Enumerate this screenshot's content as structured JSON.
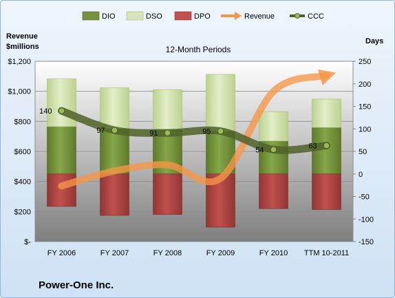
{
  "chart_data": {
    "type": "bar",
    "title": "12-Month Periods",
    "company": "Power-One Inc.",
    "left_axis_title": [
      "Revenue",
      "$millions"
    ],
    "right_axis_title": "Days",
    "categories": [
      "FY 2006",
      "FY 2007",
      "FY 2008",
      "FY 2009",
      "FY 2010",
      "TTM 10-2011"
    ],
    "left_axis": {
      "ylim": [
        0,
        1200
      ],
      "ticks": [
        0,
        200,
        400,
        600,
        800,
        1000,
        1200
      ],
      "tick_labels": [
        "$-",
        "$200",
        "$400",
        "$600",
        "$800",
        "$1,000",
        "$1,200"
      ]
    },
    "right_axis": {
      "ylim": [
        -150,
        250
      ],
      "ticks": [
        -150,
        -100,
        -50,
        0,
        50,
        100,
        150,
        200,
        250
      ],
      "tick_labels": [
        "-150",
        "-100",
        "-50",
        "0",
        "50",
        "100",
        "150",
        "200",
        "250"
      ]
    },
    "legend": [
      "DIO",
      "DSO",
      "DPO",
      "Revenue",
      "CCC"
    ],
    "legend_position": "top",
    "series": [
      {
        "name": "DIO",
        "axis": "days",
        "kind": "stacked-positive",
        "color": "#76923c",
        "values": [
          105,
          100,
          98,
          95,
          73,
          103
        ]
      },
      {
        "name": "DSO",
        "axis": "days",
        "kind": "stacked-positive",
        "color": "#d7e4bc",
        "values": [
          106,
          91,
          89,
          126,
          65,
          63
        ]
      },
      {
        "name": "DPO",
        "axis": "days",
        "kind": "negative",
        "color": "#c0504d",
        "values": [
          -72,
          -92,
          -90,
          -118,
          -77,
          -79
        ]
      },
      {
        "name": "Revenue",
        "axis": "revenue",
        "kind": "line",
        "color": "#f79646",
        "values": [
          370,
          470,
          510,
          420,
          1000,
          1105
        ]
      },
      {
        "name": "CCC",
        "axis": "days",
        "kind": "line",
        "color": "#4f6228",
        "values": [
          140,
          97,
          91,
          95,
          54,
          63
        ]
      }
    ],
    "data_labels": [
      "140",
      "97",
      "91",
      "95",
      "54",
      "63"
    ],
    "grid": true
  }
}
